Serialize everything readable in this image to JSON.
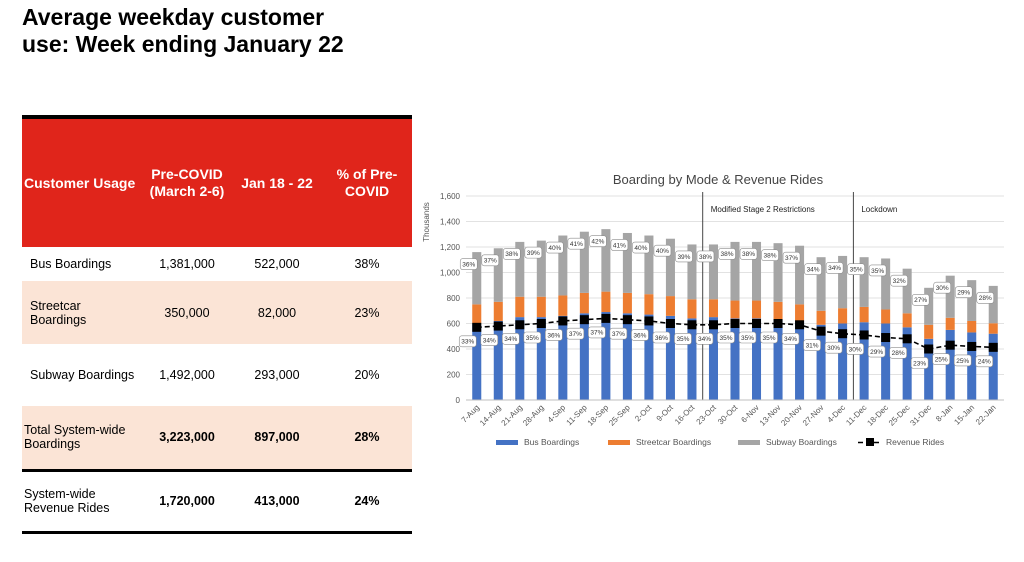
{
  "slide": {
    "title": "Average weekday customer use: Week ending January 22"
  },
  "table": {
    "headers": [
      "Customer Usage",
      "Pre-COVID (March 2-6)",
      "Jan 18 - 22",
      "% of Pre-COVID"
    ],
    "rows": [
      [
        "Bus Boardings",
        "1,381,000",
        "522,000",
        "38%"
      ],
      [
        "Streetcar Boardings",
        "350,000",
        "82,000",
        "23%"
      ],
      [
        "Subway Boardings",
        "1,492,000",
        "293,000",
        "20%"
      ],
      [
        "Total System-wide Boardings",
        "3,223,000",
        "897,000",
        "28%"
      ],
      [
        "System-wide Revenue Rides",
        "1,720,000",
        "413,000",
        "24%"
      ]
    ]
  },
  "chart_data": {
    "type": "bar",
    "title": "Boarding by Mode & Revenue Rides",
    "ylabel": "Thousands",
    "ylim": [
      0,
      1600
    ],
    "yticks": [
      "0",
      "200",
      "400",
      "600",
      "800",
      "1,000",
      "1,200",
      "1,400",
      "1,600"
    ],
    "categories": [
      "7-Aug",
      "14-Aug",
      "21-Aug",
      "28-Aug",
      "4-Sep",
      "11-Sep",
      "18-Sep",
      "25-Sep",
      "2-Oct",
      "9-Oct",
      "16-Oct",
      "23-Oct",
      "30-Oct",
      "6-Nov",
      "13-Nov",
      "20-Nov",
      "27-Nov",
      "4-Dec",
      "11-Dec",
      "18-Dec",
      "25-Dec",
      "31-Dec",
      "8-Jan",
      "15-Jan",
      "22-Jan"
    ],
    "series": [
      {
        "name": "Bus Boardings",
        "color": "#4472c4",
        "values": [
          600,
          620,
          650,
          650,
          660,
          680,
          690,
          680,
          670,
          660,
          640,
          650,
          640,
          640,
          630,
          620,
          590,
          600,
          610,
          600,
          570,
          480,
          550,
          530,
          520
        ]
      },
      {
        "name": "Streetcar Boardings",
        "color": "#ed7d31",
        "values": [
          150,
          150,
          160,
          160,
          160,
          160,
          160,
          160,
          160,
          155,
          150,
          140,
          140,
          140,
          140,
          130,
          110,
          120,
          120,
          110,
          110,
          110,
          95,
          90,
          82
        ]
      },
      {
        "name": "Subway Boardings",
        "color": "#a5a5a5",
        "values": [
          410,
          420,
          430,
          440,
          470,
          480,
          490,
          470,
          460,
          450,
          430,
          430,
          460,
          460,
          460,
          460,
          420,
          410,
          390,
          400,
          350,
          290,
          330,
          320,
          293
        ]
      },
      {
        "name": "Revenue Rides",
        "color": "#000000",
        "values": [
          570,
          580,
          590,
          600,
          620,
          630,
          640,
          630,
          620,
          600,
          590,
          590,
          600,
          600,
          600,
          590,
          540,
          520,
          510,
          490,
          480,
          400,
          430,
          420,
          413
        ]
      }
    ],
    "bar_labels": [
      "36%",
      "37%",
      "38%",
      "39%",
      "40%",
      "41%",
      "42%",
      "41%",
      "40%",
      "40%",
      "39%",
      "38%",
      "38%",
      "38%",
      "38%",
      "37%",
      "34%",
      "34%",
      "35%",
      "35%",
      "32%",
      "27%",
      "30%",
      "29%",
      "28%"
    ],
    "line_labels": [
      "33%",
      "34%",
      "34%",
      "35%",
      "36%",
      "37%",
      "37%",
      "37%",
      "36%",
      "36%",
      "35%",
      "34%",
      "35%",
      "35%",
      "35%",
      "34%",
      "31%",
      "30%",
      "30%",
      "29%",
      "28%",
      "23%",
      "25%",
      "25%",
      "24%"
    ],
    "annotations": [
      {
        "text": "Modified Stage 2 Restrictions",
        "start_index": 11
      },
      {
        "text": "Lockdown",
        "start_index": 18
      }
    ],
    "grid": true,
    "legend_position": "bottom"
  }
}
